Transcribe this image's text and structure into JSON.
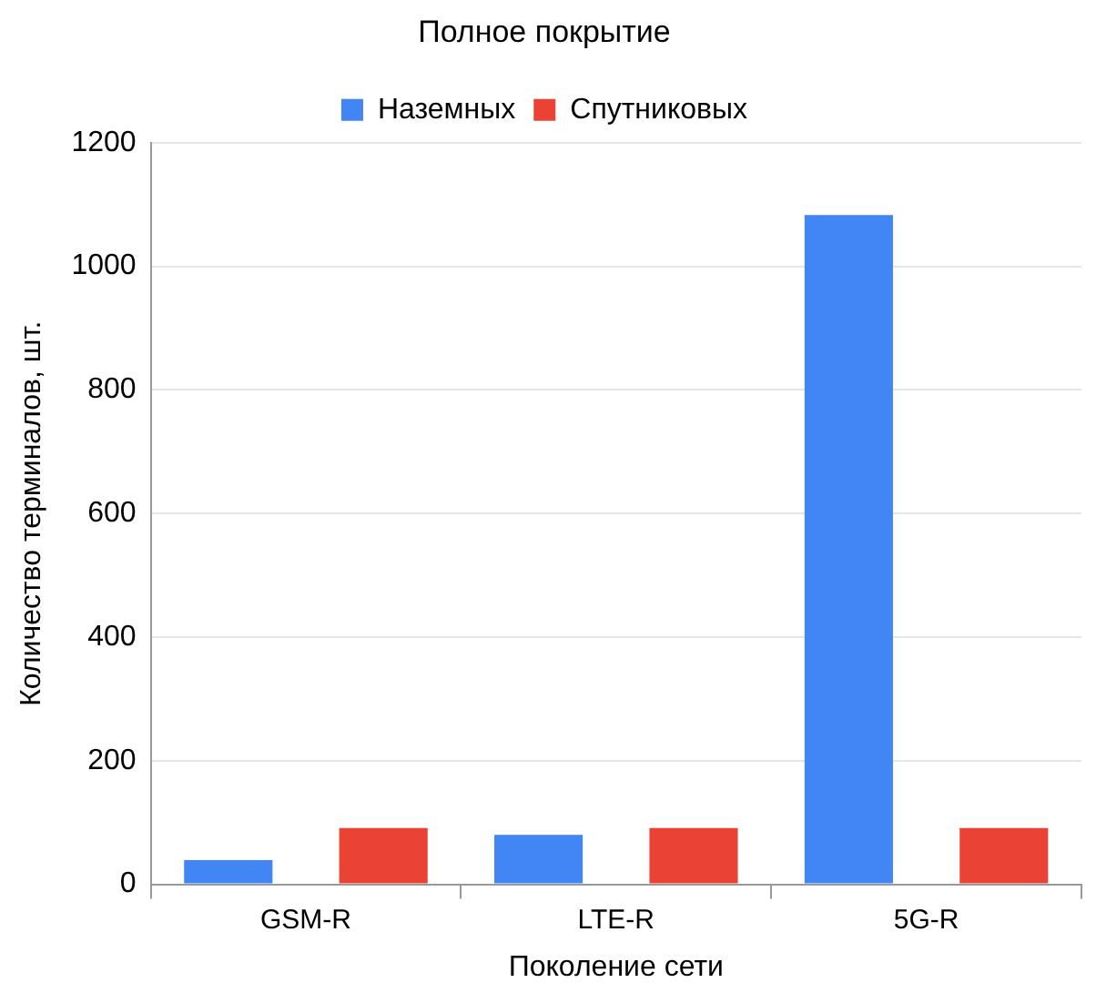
{
  "chart_data": {
    "type": "bar",
    "title": "Полное покрытие",
    "xlabel": "Поколение сети",
    "ylabel": "Количество терминалов, шт.",
    "categories": [
      "GSM-R",
      "LTE-R",
      "5G-R"
    ],
    "series": [
      {
        "name": "Наземных",
        "color": "#4285f4",
        "values": [
          39,
          80,
          1083
        ]
      },
      {
        "name": "Спутниковых",
        "color": "#ea4335",
        "values": [
          91,
          91,
          91
        ]
      }
    ],
    "ylim": [
      0,
      1200
    ],
    "yticks": [
      0,
      200,
      400,
      600,
      800,
      1000,
      1200
    ],
    "grid": "y",
    "legend": "top"
  }
}
